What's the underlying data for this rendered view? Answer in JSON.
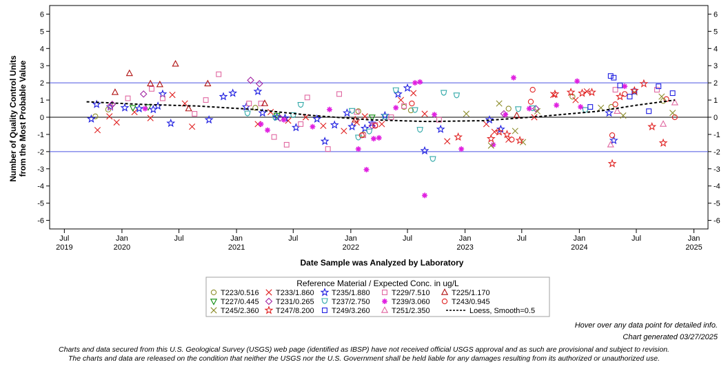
{
  "chart_data": {
    "type": "scatter",
    "title": "",
    "xlabel": "Date Sample was Analyzed by Laboratory",
    "ylabel_line1": "Number of Quality Control Units",
    "ylabel_line2": "from the Most Probable Value",
    "ylim": [
      -6.5,
      6.5
    ],
    "y_ticks": [
      6,
      5,
      4,
      3,
      2,
      1,
      0,
      -1,
      -2,
      -3,
      -4,
      -5,
      -6
    ],
    "y_tick_labels": [
      "6",
      "5",
      "4",
      "3",
      "2",
      "1",
      "0",
      "-1",
      "-2",
      "-3",
      "-4",
      "-5",
      "-6"
    ],
    "xlim": [
      "2019-05-15",
      "2025-02-15"
    ],
    "x_ticks": [
      "2019-07-01",
      "2020-01-01",
      "2020-07-01",
      "2021-01-01",
      "2021-07-01",
      "2022-01-01",
      "2022-07-01",
      "2023-01-01",
      "2023-07-01",
      "2024-01-01",
      "2024-07-01",
      "2025-01-01"
    ],
    "x_tick_labels": [
      "Jul",
      "Jan",
      "Jul",
      "Jan",
      "Jul",
      "Jan",
      "Jul",
      "Jan",
      "Jul",
      "Jan",
      "Jul",
      "Jan"
    ],
    "x_year_labels": [
      "2019",
      "2020",
      "",
      "2021",
      "",
      "2022",
      "",
      "2023",
      "",
      "2024",
      "",
      "2025"
    ],
    "reference_lines": [
      {
        "y": 2,
        "color": "#4a55e0"
      },
      {
        "y": 0,
        "color": "#000000"
      },
      {
        "y": -2,
        "color": "#4a55e0"
      }
    ],
    "grid": false,
    "legend_title": "Reference Material / Expected Conc. in ug/L",
    "legend_position": "bottom-center",
    "series": [
      {
        "name": "T223/0.516",
        "marker": "circle",
        "color": "#8c8c2a",
        "points": [
          [
            "2019-10-08",
            0.05
          ],
          [
            "2019-11-18",
            0.45
          ],
          [
            "2021-03-02",
            0.55
          ],
          [
            "2022-01-25",
            0.35
          ],
          [
            "2022-02-10",
            -1.0
          ],
          [
            "2022-06-20",
            0.6
          ],
          [
            "2022-07-12",
            0.4
          ],
          [
            "2023-05-20",
            0.5
          ],
          [
            "2023-12-10",
            1.2
          ],
          [
            "2024-04-12",
            0.6
          ],
          [
            "2024-09-25",
            0.95
          ]
        ]
      },
      {
        "name": "T233/1.860",
        "marker": "x",
        "color": "#e02020",
        "points": [
          [
            "2019-10-15",
            -0.75
          ],
          [
            "2019-11-22",
            0.05
          ],
          [
            "2019-12-15",
            -0.3
          ],
          [
            "2020-02-10",
            0.3
          ],
          [
            "2020-04-01",
            -0.05
          ],
          [
            "2020-06-10",
            1.3
          ],
          [
            "2020-07-20",
            0.8
          ],
          [
            "2020-08-12",
            -0.55
          ],
          [
            "2021-03-10",
            -0.4
          ],
          [
            "2021-04-20",
            0.3
          ],
          [
            "2021-06-15",
            -0.2
          ],
          [
            "2021-08-10",
            0.0
          ],
          [
            "2021-10-05",
            -0.5
          ],
          [
            "2021-12-10",
            -0.8
          ],
          [
            "2022-01-20",
            -0.3
          ],
          [
            "2022-02-15",
            0.05
          ],
          [
            "2022-04-10",
            -0.4
          ],
          [
            "2022-06-10",
            1.0
          ],
          [
            "2022-07-20",
            1.4
          ],
          [
            "2022-08-25",
            0.2
          ],
          [
            "2022-11-05",
            -1.4
          ],
          [
            "2023-03-10",
            -0.4
          ],
          [
            "2023-04-05",
            -0.85
          ],
          [
            "2023-05-20",
            -1.3
          ],
          [
            "2023-08-10",
            0.0
          ],
          [
            "2023-10-10",
            1.3
          ],
          [
            "2023-12-20",
            1.0
          ],
          [
            "2024-01-25",
            1.5
          ]
        ]
      },
      {
        "name": "T235/1.880",
        "marker": "star",
        "color": "#1a1ae0",
        "points": [
          [
            "2019-09-25",
            -0.1
          ],
          [
            "2019-10-12",
            0.75
          ],
          [
            "2019-11-25",
            0.6
          ],
          [
            "2020-01-10",
            0.55
          ],
          [
            "2020-02-25",
            0.5
          ],
          [
            "2020-04-10",
            0.45
          ],
          [
            "2020-04-25",
            0.65
          ],
          [
            "2020-05-10",
            1.35
          ],
          [
            "2020-06-05",
            -0.35
          ],
          [
            "2020-10-05",
            -0.15
          ],
          [
            "2020-11-20",
            1.2
          ],
          [
            "2020-12-20",
            1.4
          ],
          [
            "2021-02-01",
            0.6
          ],
          [
            "2021-03-10",
            1.5
          ],
          [
            "2021-03-25",
            0.25
          ],
          [
            "2021-05-10",
            0.0
          ],
          [
            "2021-06-05",
            -0.05
          ],
          [
            "2021-07-10",
            -0.6
          ],
          [
            "2021-09-15",
            -0.1
          ],
          [
            "2021-10-10",
            -1.4
          ],
          [
            "2021-11-10",
            -0.45
          ],
          [
            "2021-12-20",
            0.25
          ],
          [
            "2022-01-05",
            -0.55
          ],
          [
            "2022-02-15",
            -0.65
          ],
          [
            "2022-03-10",
            -0.35
          ],
          [
            "2022-04-20",
            0.1
          ],
          [
            "2022-06-01",
            1.35
          ],
          [
            "2022-07-01",
            1.7
          ],
          [
            "2022-08-25",
            -1.95
          ],
          [
            "2022-10-15",
            -0.7
          ],
          [
            "2023-03-20",
            -0.15
          ],
          [
            "2023-04-25",
            -0.7
          ],
          [
            "2024-04-05",
            0.25
          ],
          [
            "2024-04-20",
            -1.35
          ]
        ]
      },
      {
        "name": "T229/7.510",
        "marker": "square",
        "color": "#e066a0",
        "points": [
          [
            "2019-11-25",
            0.6
          ],
          [
            "2020-01-20",
            1.1
          ],
          [
            "2020-04-05",
            1.65
          ],
          [
            "2020-05-10",
            1.1
          ],
          [
            "2020-08-20",
            0.2
          ],
          [
            "2020-09-25",
            1.0
          ],
          [
            "2020-11-05",
            2.5
          ],
          [
            "2021-02-10",
            0.8
          ],
          [
            "2021-03-20",
            0.8
          ],
          [
            "2021-05-01",
            -1.15
          ],
          [
            "2021-06-10",
            -1.6
          ],
          [
            "2021-07-25",
            -0.4
          ],
          [
            "2021-08-15",
            1.15
          ],
          [
            "2021-10-20",
            -1.85
          ],
          [
            "2021-11-25",
            1.35
          ],
          [
            "2022-01-20",
            0.3
          ],
          [
            "2022-02-10",
            -1.05
          ],
          [
            "2022-03-20",
            -0.45
          ],
          [
            "2022-05-10",
            0.0
          ],
          [
            "2022-06-20",
            0.65
          ],
          [
            "2022-10-10",
            -0.15
          ],
          [
            "2024-04-25",
            1.6
          ],
          [
            "2024-09-05",
            1.6
          ]
        ]
      },
      {
        "name": "T225/1.170",
        "marker": "triangle",
        "color": "#b01010",
        "points": [
          [
            "2019-12-10",
            1.45
          ],
          [
            "2020-01-25",
            2.55
          ],
          [
            "2020-04-01",
            1.95
          ],
          [
            "2020-05-01",
            1.9
          ],
          [
            "2020-06-20",
            3.1
          ],
          [
            "2020-08-01",
            0.5
          ],
          [
            "2020-10-01",
            1.95
          ],
          [
            "2021-04-01",
            0.8
          ],
          [
            "2022-01-15",
            -0.15
          ],
          [
            "2023-06-15",
            0.1
          ]
        ]
      },
      {
        "name": "T227/0.445",
        "marker": "triangle-down",
        "color": "#0a8a0a",
        "points": [
          [
            "2020-02-05",
            0.55
          ],
          [
            "2020-03-25",
            0.6
          ],
          [
            "2021-05-10",
            0.1
          ],
          [
            "2022-03-10",
            0.0
          ]
        ]
      },
      {
        "name": "T231/0.265",
        "marker": "diamond",
        "color": "#a020a0",
        "points": [
          [
            "2019-12-01",
            0.75
          ],
          [
            "2020-03-10",
            1.35
          ],
          [
            "2021-02-15",
            2.15
          ],
          [
            "2021-03-15",
            1.95
          ],
          [
            "2021-05-20",
            -0.05
          ],
          [
            "2022-03-10",
            -0.5
          ],
          [
            "2023-05-05",
            0.2
          ],
          [
            "2023-08-15",
            0.5
          ]
        ]
      },
      {
        "name": "T237/2.750",
        "marker": "cup",
        "color": "#30a8a8",
        "points": [
          [
            "2021-02-05",
            0.2
          ],
          [
            "2021-05-05",
            -0.05
          ],
          [
            "2021-07-01",
            0.1
          ],
          [
            "2021-07-25",
            0.7
          ],
          [
            "2022-01-05",
            0.35
          ],
          [
            "2022-01-25",
            -1.2
          ],
          [
            "2022-03-01",
            -0.85
          ],
          [
            "2022-04-20",
            0.0
          ],
          [
            "2022-05-25",
            1.55
          ],
          [
            "2022-07-25",
            0.4
          ],
          [
            "2022-08-10",
            -0.75
          ],
          [
            "2022-09-20",
            -2.45
          ],
          [
            "2022-10-25",
            1.4
          ],
          [
            "2022-12-05",
            1.25
          ],
          [
            "2023-06-20",
            0.45
          ],
          [
            "2023-08-05",
            0.5
          ],
          [
            "2024-01-20",
            0.4
          ]
        ]
      },
      {
        "name": "T239/3.060",
        "marker": "asterisk",
        "color": "#e020e0",
        "points": [
          [
            "2020-03-15",
            0.5
          ],
          [
            "2021-03-20",
            -0.4
          ],
          [
            "2021-04-10",
            -0.75
          ],
          [
            "2021-06-01",
            -0.15
          ],
          [
            "2021-09-01",
            -0.55
          ],
          [
            "2021-10-25",
            0.45
          ],
          [
            "2022-01-25",
            -1.85
          ],
          [
            "2022-02-20",
            -3.05
          ],
          [
            "2022-03-15",
            -1.25
          ],
          [
            "2022-04-01",
            -1.2
          ],
          [
            "2022-05-25",
            0.55
          ],
          [
            "2022-07-25",
            2.0
          ],
          [
            "2022-08-10",
            2.05
          ],
          [
            "2022-08-25",
            -4.55
          ],
          [
            "2022-09-25",
            0.15
          ],
          [
            "2022-12-20",
            -1.85
          ],
          [
            "2023-04-01",
            -1.6
          ],
          [
            "2023-05-10",
            0.15
          ],
          [
            "2023-06-05",
            2.3
          ],
          [
            "2023-07-25",
            0.5
          ],
          [
            "2023-10-20",
            0.7
          ],
          [
            "2023-12-25",
            2.1
          ],
          [
            "2024-01-05",
            0.6
          ],
          [
            "2024-05-25",
            1.8
          ]
        ]
      },
      {
        "name": "T243/0.945",
        "marker": "circle-open",
        "color": "#e02020",
        "points": [
          [
            "2022-02-05",
            -1.05
          ],
          [
            "2022-03-20",
            -0.5
          ],
          [
            "2022-07-15",
            0.8
          ],
          [
            "2023-05-30",
            -1.3
          ],
          [
            "2023-07-30",
            0.9
          ],
          [
            "2023-08-05",
            1.6
          ],
          [
            "2024-04-15",
            -1.05
          ],
          [
            "2024-04-25",
            0.75
          ],
          [
            "2024-05-25",
            1.35
          ],
          [
            "2024-10-05",
            1.05
          ],
          [
            "2024-11-01",
            0.0
          ]
        ]
      },
      {
        "name": "T245/2.360",
        "marker": "x",
        "color": "#8c8c2a",
        "points": [
          [
            "2023-01-05",
            0.2
          ],
          [
            "2023-03-25",
            -1.65
          ],
          [
            "2023-04-20",
            0.8
          ],
          [
            "2023-06-10",
            -0.8
          ],
          [
            "2023-07-05",
            -1.45
          ],
          [
            "2023-08-20",
            0.35
          ],
          [
            "2024-03-10",
            0.55
          ],
          [
            "2024-05-20",
            0.1
          ],
          [
            "2024-06-25",
            1.45
          ],
          [
            "2024-09-20",
            1.2
          ],
          [
            "2024-10-25",
            0.25
          ]
        ]
      },
      {
        "name": "T249/3.260",
        "marker": "square",
        "color": "#1a1ae0",
        "points": [
          [
            "2024-02-05",
            0.6
          ],
          [
            "2024-04-10",
            2.4
          ],
          [
            "2024-04-20",
            2.3
          ],
          [
            "2024-05-10",
            1.85
          ],
          [
            "2024-06-10",
            1.2
          ],
          [
            "2024-06-25",
            1.5
          ],
          [
            "2024-08-10",
            0.35
          ],
          [
            "2024-09-10",
            1.8
          ],
          [
            "2024-10-25",
            1.4
          ]
        ]
      },
      {
        "name": "T247/8.200",
        "marker": "star",
        "color": "#e02020",
        "points": [
          [
            "2022-12-10",
            -1.15
          ],
          [
            "2023-03-25",
            -1.25
          ],
          [
            "2023-04-20",
            -0.85
          ],
          [
            "2023-05-15",
            -1.0
          ],
          [
            "2023-06-25",
            -1.35
          ],
          [
            "2023-10-15",
            1.35
          ],
          [
            "2023-12-05",
            1.45
          ],
          [
            "2024-01-10",
            1.4
          ],
          [
            "2024-02-10",
            1.45
          ],
          [
            "2024-04-15",
            -2.7
          ],
          [
            "2024-05-10",
            1.2
          ],
          [
            "2024-06-25",
            1.55
          ],
          [
            "2024-07-25",
            1.95
          ],
          [
            "2024-08-20",
            -0.55
          ],
          [
            "2024-09-25",
            -1.5
          ]
        ]
      },
      {
        "name": "T251/2.350",
        "marker": "triangle",
        "color": "#e066a0",
        "points": [
          [
            "2024-04-10",
            -1.6
          ],
          [
            "2024-05-01",
            0.35
          ],
          [
            "2024-09-25",
            -0.4
          ],
          [
            "2024-11-01",
            0.85
          ]
        ]
      },
      {
        "name": "Loess, Smooth=0.5",
        "marker": "line",
        "color": "#000000",
        "points": [
          [
            "2019-09-10",
            0.9
          ],
          [
            "2020-03-01",
            0.75
          ],
          [
            "2020-09-01",
            0.65
          ],
          [
            "2021-03-01",
            0.45
          ],
          [
            "2021-09-01",
            0.1
          ],
          [
            "2022-03-01",
            -0.15
          ],
          [
            "2022-09-01",
            -0.25
          ],
          [
            "2023-03-01",
            -0.2
          ],
          [
            "2023-09-01",
            0.05
          ],
          [
            "2024-03-01",
            0.35
          ],
          [
            "2024-07-01",
            0.7
          ],
          [
            "2024-11-01",
            1.0
          ]
        ]
      }
    ]
  },
  "footer": {
    "hover_note": "Hover over any data point for detailed info.",
    "generated": "Chart generated 03/27/2025",
    "disclaimer_1": "Charts and data secured from this U.S. Geological Survey (USGS) web page (identified as IBSP) have not received official USGS approval and as such are provisional and subject to revision.",
    "disclaimer_2": "The charts and data are released on the condition that neither the USGS nor the U.S. Government shall be held liable for any damages resulting from its authorized or unauthorized use."
  }
}
